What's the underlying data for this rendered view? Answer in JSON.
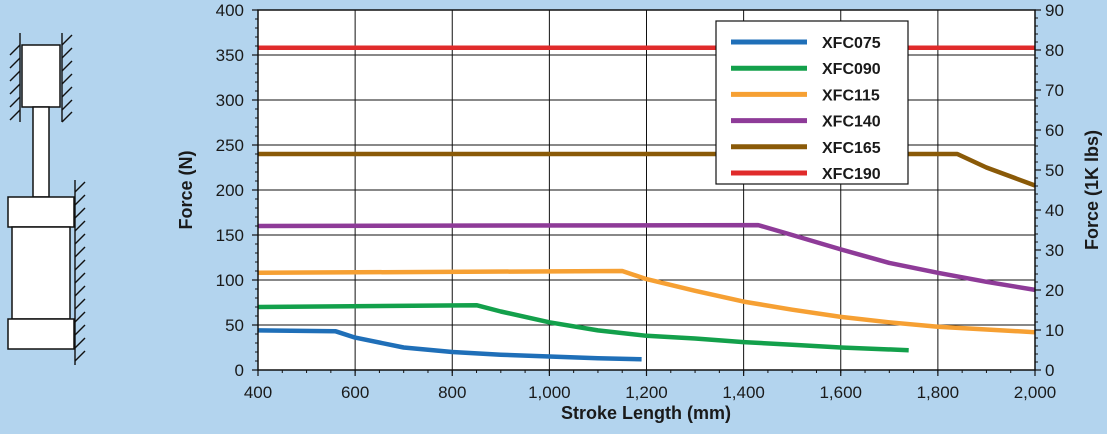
{
  "chart_data": {
    "type": "line",
    "xlabel": "Stroke Length (mm)",
    "ylabel": "Force (N)",
    "ylabel_right": "Force (1K lbs)",
    "xlim": [
      400,
      2000
    ],
    "ylim": [
      0,
      400
    ],
    "ylim_right": [
      0,
      90
    ],
    "x_ticks": [
      400,
      600,
      800,
      1000,
      1200,
      1400,
      1600,
      1800,
      2000
    ],
    "x_tick_labels": [
      "400",
      "600",
      "800",
      "1,000",
      "1,200",
      "1,400",
      "1,600",
      "1,800",
      "2,000"
    ],
    "y_ticks": [
      0,
      50,
      100,
      150,
      200,
      250,
      300,
      350,
      400
    ],
    "y_tick_labels": [
      "0",
      "50",
      "100",
      "150",
      "200",
      "250",
      "300",
      "350",
      "400"
    ],
    "y_right_ticks": [
      0,
      10,
      20,
      30,
      40,
      50,
      60,
      70,
      80,
      90
    ],
    "y_right_tick_labels": [
      "0",
      "10",
      "20",
      "30",
      "40",
      "50",
      "60",
      "70",
      "80",
      "90"
    ],
    "grid": true,
    "legend_position": "top-right",
    "series": [
      {
        "name": "XFC075",
        "color": "#1f6fb8",
        "points": [
          [
            400,
            44
          ],
          [
            560,
            43
          ],
          [
            600,
            36
          ],
          [
            700,
            25
          ],
          [
            800,
            20
          ],
          [
            900,
            17
          ],
          [
            1000,
            15
          ],
          [
            1100,
            13
          ],
          [
            1190,
            12
          ]
        ]
      },
      {
        "name": "XFC090",
        "color": "#13a04b",
        "points": [
          [
            400,
            70
          ],
          [
            850,
            72
          ],
          [
            900,
            65
          ],
          [
            1000,
            53
          ],
          [
            1100,
            44
          ],
          [
            1200,
            38
          ],
          [
            1300,
            35
          ],
          [
            1400,
            31
          ],
          [
            1500,
            28
          ],
          [
            1600,
            25
          ],
          [
            1740,
            22
          ]
        ]
      },
      {
        "name": "XFC115",
        "color": "#f6a033",
        "points": [
          [
            400,
            108
          ],
          [
            1150,
            110
          ],
          [
            1200,
            101
          ],
          [
            1300,
            88
          ],
          [
            1400,
            76
          ],
          [
            1500,
            67
          ],
          [
            1600,
            59
          ],
          [
            1700,
            53
          ],
          [
            1800,
            48
          ],
          [
            1900,
            45
          ],
          [
            2000,
            42
          ]
        ]
      },
      {
        "name": "XFC140",
        "color": "#8e3b98",
        "points": [
          [
            400,
            160
          ],
          [
            1430,
            161
          ],
          [
            1500,
            150
          ],
          [
            1600,
            134
          ],
          [
            1700,
            119
          ],
          [
            1800,
            108
          ],
          [
            1900,
            98
          ],
          [
            2000,
            89
          ]
        ]
      },
      {
        "name": "XFC165",
        "color": "#8a5a08",
        "points": [
          [
            400,
            240
          ],
          [
            1840,
            240
          ],
          [
            1900,
            225
          ],
          [
            2000,
            205
          ]
        ]
      },
      {
        "name": "XFC190",
        "color": "#e02b2b",
        "points": [
          [
            400,
            358
          ],
          [
            2000,
            358
          ]
        ]
      }
    ]
  }
}
